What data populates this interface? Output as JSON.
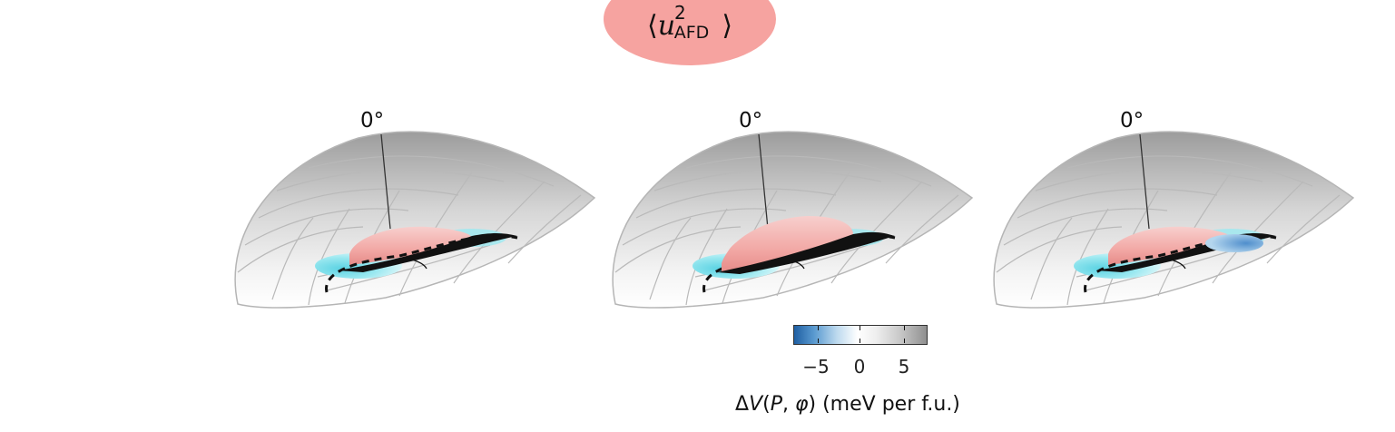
{
  "title": {
    "operator_open": "⟨",
    "variable": "u",
    "superscript": "2",
    "subscript": "AFD",
    "operator_close": "⟩"
  },
  "panels": [
    {
      "angle_label": "0°"
    },
    {
      "angle_label": "0°"
    },
    {
      "angle_label": "0°"
    }
  ],
  "colorbar": {
    "tick_labels": [
      "−5",
      "0",
      "5"
    ],
    "label_prefix": "Δ",
    "label_var": "V",
    "label_args_open": "(",
    "label_arg_p": "P",
    "label_sep": ", ",
    "label_arg_phi": "φ",
    "label_args_close": ")",
    "label_units": " (meV per f.u.)",
    "colors": {
      "neg": "#1f5fa3",
      "zero": "#ffffff",
      "pos": "#8f8f8f"
    }
  },
  "colors": {
    "title_bg": "#f6a3a0",
    "surface_pink": "#f4b7b4",
    "surface_cyan": "#74dbe6"
  }
}
